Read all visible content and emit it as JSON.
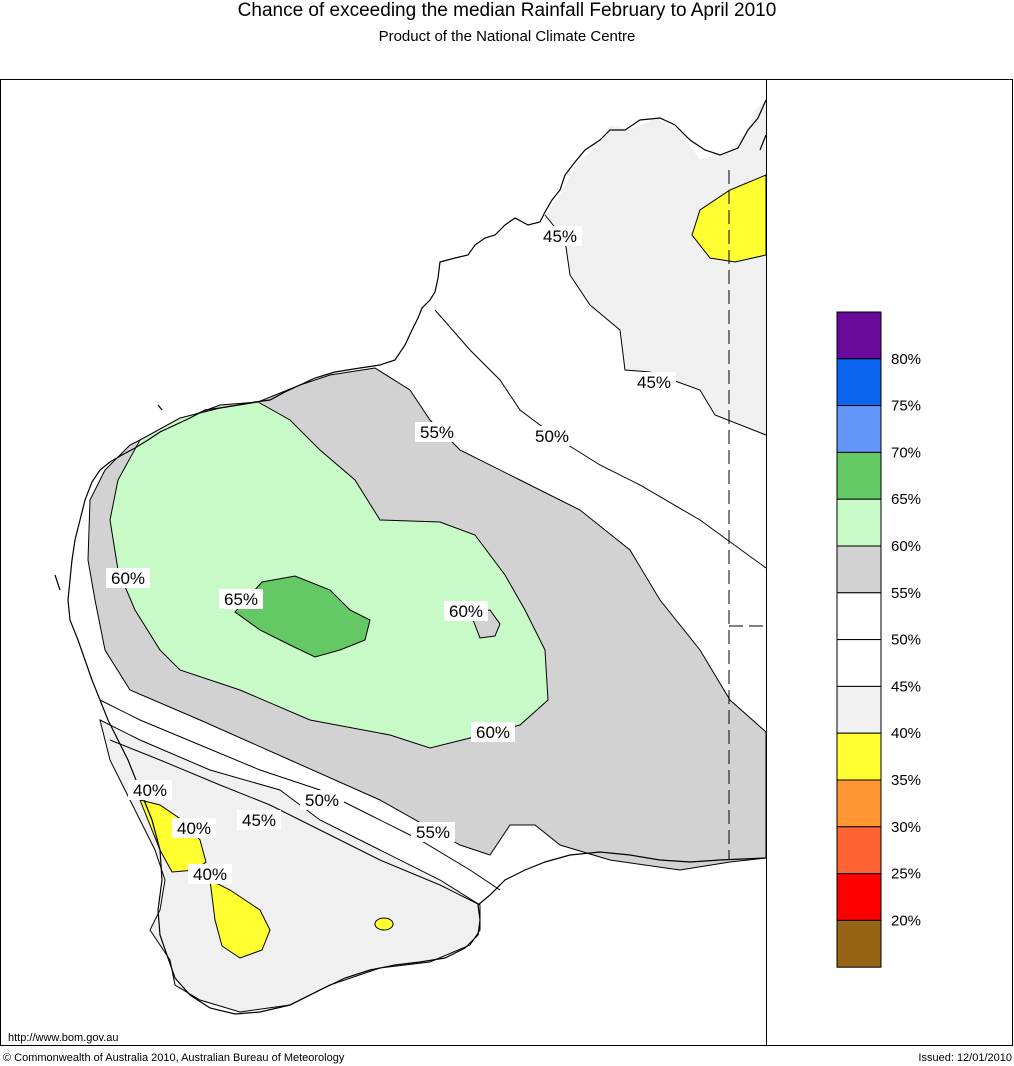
{
  "header": {
    "title": "Chance of exceeding the median Rainfall February to April 2010",
    "subtitle": "Product of the National Climate Centre"
  },
  "footer": {
    "url": "http://www.bom.gov.au",
    "copyright": "© Commonwealth of Australia 2010, Australian Bureau of Meteorology",
    "issued": "Issued: 12/01/2010"
  },
  "contour_labels": [
    "45%",
    "45%",
    "50%",
    "55%",
    "60%",
    "65%",
    "60%",
    "60%",
    "40%",
    "40%",
    "40%",
    "45%",
    "50%",
    "55%"
  ],
  "legend": {
    "bins": [
      {
        "color": "#6a0a9c"
      },
      {
        "color": "#0a64f0",
        "label": "80%"
      },
      {
        "color": "#6496fa",
        "label": "75%"
      },
      {
        "color": "#64c864",
        "label": "70%"
      },
      {
        "color": "#c8fac8",
        "label": "65%"
      },
      {
        "color": "#d2d2d2",
        "label": "60%"
      },
      {
        "color": "#ffffff",
        "label": "55%"
      },
      {
        "color": "#ffffff",
        "label": "50%"
      },
      {
        "color": "#f0f0f0",
        "label": "45%"
      },
      {
        "color": "#ffff32",
        "label": "40%"
      },
      {
        "color": "#ff9632",
        "label": "35%"
      },
      {
        "color": "#ff6432",
        "label": "30%"
      },
      {
        "color": "#ff0000",
        "label": "25%"
      },
      {
        "color": "#966414",
        "label": "20%"
      }
    ]
  }
}
